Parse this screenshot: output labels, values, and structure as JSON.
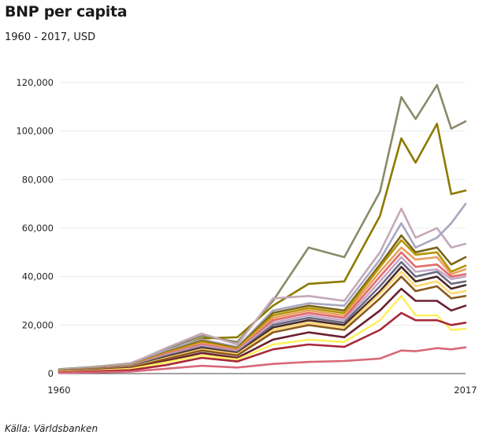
{
  "title": "BNP per capita",
  "subtitle": "1960 - 2017, USD",
  "source": "Källa: Världsbanken",
  "chart_data": {
    "type": "line",
    "x": [
      1960,
      1965,
      1970,
      1975,
      1980,
      1985,
      1990,
      1995,
      2000,
      2005,
      2008,
      2010,
      2013,
      2015,
      2017
    ],
    "xlim": [
      1960,
      2017
    ],
    "ylim": [
      0,
      120000
    ],
    "x_tick_labels": [
      "1960",
      "2017"
    ],
    "y_ticks": [
      0,
      20000,
      40000,
      60000,
      80000,
      100000,
      120000
    ],
    "y_tick_labels": [
      "0",
      "20,000",
      "40,000",
      "60,000",
      "80,000",
      "100,000",
      "120,000"
    ],
    "grid": true,
    "series": [
      {
        "color": "#8a8a6a",
        "values": [
          1800,
          2800,
          4200,
          10000,
          15500,
          13000,
          30000,
          52000,
          48000,
          75000,
          114000,
          105000,
          119000,
          101000,
          104000
        ]
      },
      {
        "color": "#8c7a00",
        "values": [
          1500,
          2200,
          3500,
          9000,
          14500,
          15000,
          28000,
          37000,
          38000,
          65000,
          97000,
          87000,
          103000,
          74000,
          75500
        ]
      },
      {
        "color": "#c4a8b8",
        "values": [
          1600,
          2600,
          4000,
          10500,
          16500,
          12000,
          31000,
          32000,
          30000,
          50000,
          68000,
          56000,
          60000,
          52000,
          53500
        ]
      },
      {
        "color": "#a8a8c0",
        "values": [
          1400,
          2300,
          3500,
          9500,
          14000,
          11000,
          26000,
          29000,
          28000,
          47000,
          62000,
          52000,
          56000,
          62000,
          70000
        ]
      },
      {
        "color": "#7a6418",
        "values": [
          1300,
          2100,
          3300,
          8800,
          13500,
          10500,
          25000,
          28000,
          26000,
          45000,
          57000,
          50000,
          52000,
          45000,
          48000
        ]
      },
      {
        "color": "#b39400",
        "values": [
          1250,
          2050,
          3200,
          8600,
          13000,
          10200,
          24000,
          27000,
          25000,
          44000,
          55000,
          49000,
          50000,
          42000,
          44500
        ]
      },
      {
        "color": "#e8a060",
        "values": [
          1200,
          1950,
          3100,
          8200,
          12500,
          9800,
          23000,
          26000,
          24000,
          42000,
          52000,
          47000,
          48000,
          41000,
          43000
        ]
      },
      {
        "color": "#e26a6a",
        "values": [
          1150,
          1900,
          3000,
          8000,
          12000,
          9500,
          22000,
          25000,
          23000,
          40000,
          50000,
          44000,
          45000,
          40000,
          41000
        ]
      },
      {
        "color": "#c5a8c8",
        "values": [
          1100,
          1850,
          2900,
          7600,
          11500,
          9200,
          21000,
          24000,
          22000,
          38000,
          48000,
          42000,
          43000,
          39000,
          40000
        ]
      },
      {
        "color": "#6a6a80",
        "values": [
          1050,
          1800,
          2800,
          7200,
          11000,
          8800,
          20000,
          23000,
          21000,
          36000,
          46000,
          40000,
          42000,
          37000,
          38000
        ]
      },
      {
        "color": "#4a2a2a",
        "values": [
          1000,
          1700,
          2600,
          6800,
          10500,
          8400,
          19000,
          22000,
          20000,
          34000,
          44000,
          38000,
          40000,
          35000,
          36500
        ]
      },
      {
        "color": "#ffd870",
        "values": [
          950,
          1650,
          2500,
          6400,
          10000,
          8000,
          18000,
          21000,
          19000,
          33000,
          42000,
          36000,
          38000,
          33000,
          34000
        ]
      },
      {
        "color": "#8a5a20",
        "values": [
          900,
          1550,
          2400,
          6000,
          9500,
          7500,
          17000,
          20000,
          18000,
          31000,
          40000,
          34000,
          36000,
          31000,
          32000
        ]
      },
      {
        "color": "#6a2030",
        "values": [
          800,
          1400,
          2100,
          5200,
          8500,
          6500,
          14000,
          17000,
          15000,
          26000,
          35000,
          30000,
          30000,
          26000,
          28000
        ]
      },
      {
        "color": "#fff060",
        "values": [
          700,
          1200,
          1900,
          4600,
          7500,
          5800,
          12000,
          14000,
          13000,
          22000,
          32000,
          24000,
          24000,
          18000,
          18500
        ]
      },
      {
        "color": "#a82838",
        "values": [
          500,
          900,
          1400,
          3500,
          6500,
          5000,
          10000,
          12000,
          11000,
          18000,
          25000,
          22000,
          22000,
          20000,
          21000
        ]
      },
      {
        "color": "#d86878",
        "values": [
          300,
          500,
          800,
          2000,
          3200,
          2500,
          4000,
          4800,
          5200,
          6200,
          9500,
          9200,
          10500,
          10000,
          10800
        ]
      }
    ]
  }
}
